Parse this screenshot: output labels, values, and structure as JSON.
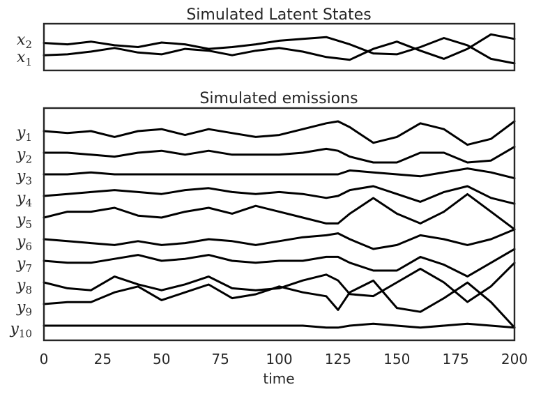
{
  "chart_data": [
    {
      "type": "line",
      "title": "Simulated Latent States",
      "xlim": [
        0,
        200
      ],
      "x_ticks_shown": false,
      "grid": false,
      "y_track_labels": [
        {
          "base": "x",
          "sub": "2"
        },
        {
          "base": "x",
          "sub": "1"
        }
      ],
      "x": [
        0,
        10,
        20,
        30,
        40,
        50,
        60,
        70,
        80,
        90,
        100,
        110,
        120,
        130,
        140,
        150,
        160,
        170,
        180,
        190,
        200
      ],
      "series": [
        {
          "values": [
            0.45,
            0.3,
            0.6,
            0.2,
            0.0,
            0.5,
            0.3,
            -0.2,
            0.0,
            0.3,
            0.7,
            0.9,
            1.1,
            0.3,
            -0.7,
            -0.8,
            0.0,
            1.0,
            0.2,
            -1.3,
            -1.8
          ]
        },
        {
          "values": [
            -0.9,
            -0.8,
            -0.5,
            -0.1,
            -0.6,
            -0.8,
            -0.2,
            -0.4,
            -0.9,
            -0.4,
            -0.1,
            -0.5,
            -1.1,
            -1.4,
            -0.2,
            0.6,
            -0.4,
            -1.3,
            -0.2,
            1.4,
            0.9
          ]
        }
      ]
    },
    {
      "type": "line",
      "title": "Simulated emissions",
      "xlabel": "time",
      "xlim": [
        0,
        200
      ],
      "x_ticks": [
        "0",
        "25",
        "50",
        "75",
        "100",
        "125",
        "150",
        "175",
        "200"
      ],
      "grid": false,
      "y_track_labels": [
        {
          "base": "y",
          "sub": "1"
        },
        {
          "base": "y",
          "sub": "2"
        },
        {
          "base": "y",
          "sub": "3"
        },
        {
          "base": "y",
          "sub": "4"
        },
        {
          "base": "y",
          "sub": "5"
        },
        {
          "base": "y",
          "sub": "6"
        },
        {
          "base": "y",
          "sub": "7"
        },
        {
          "base": "y",
          "sub": "8"
        },
        {
          "base": "y",
          "sub": "9"
        },
        {
          "base": "y",
          "sub": "10"
        }
      ],
      "x": [
        0,
        10,
        20,
        30,
        40,
        50,
        60,
        70,
        80,
        90,
        100,
        110,
        120,
        125,
        130,
        140,
        150,
        160,
        170,
        180,
        190,
        200
      ],
      "series": [
        {
          "values": [
            0.0,
            -0.1,
            0.0,
            -0.3,
            0.0,
            0.1,
            -0.2,
            0.1,
            -0.1,
            -0.3,
            -0.2,
            0.1,
            0.4,
            0.5,
            0.2,
            -0.6,
            -0.3,
            0.4,
            0.1,
            -0.7,
            -0.4,
            0.5
          ]
        },
        {
          "values": [
            0.0,
            0.0,
            -0.1,
            -0.2,
            0.0,
            0.1,
            -0.1,
            0.1,
            -0.1,
            -0.1,
            -0.1,
            0.0,
            0.2,
            0.1,
            -0.2,
            -0.5,
            -0.5,
            0.0,
            0.0,
            -0.5,
            -0.4,
            0.3
          ]
        },
        {
          "values": [
            0.0,
            0.0,
            0.1,
            0.0,
            0.0,
            0.0,
            0.0,
            0.0,
            0.0,
            0.0,
            0.0,
            0.0,
            0.0,
            0.0,
            0.2,
            0.1,
            0.0,
            -0.1,
            0.1,
            0.3,
            0.1,
            -0.2
          ]
        },
        {
          "values": [
            0.0,
            0.1,
            0.2,
            0.3,
            0.2,
            0.1,
            0.3,
            0.4,
            0.2,
            0.1,
            0.2,
            0.1,
            -0.1,
            0.0,
            0.3,
            0.5,
            0.1,
            -0.3,
            0.2,
            0.5,
            -0.1,
            -0.4
          ]
        },
        {
          "values": [
            0.0,
            0.3,
            0.3,
            0.5,
            0.1,
            0.0,
            0.3,
            0.5,
            0.2,
            0.6,
            0.3,
            0.0,
            -0.3,
            -0.3,
            0.2,
            1.0,
            0.2,
            -0.3,
            0.3,
            1.2,
            0.3,
            -0.6
          ]
        },
        {
          "values": [
            0.0,
            -0.1,
            -0.2,
            -0.3,
            -0.1,
            -0.3,
            -0.2,
            0.0,
            -0.1,
            -0.3,
            -0.1,
            0.1,
            0.2,
            0.3,
            0.0,
            -0.5,
            -0.3,
            0.2,
            0.0,
            -0.3,
            0.0,
            0.5
          ]
        },
        {
          "values": [
            0.0,
            -0.1,
            -0.1,
            0.1,
            0.3,
            0.0,
            0.1,
            0.3,
            0.0,
            -0.1,
            0.0,
            0.0,
            0.2,
            0.2,
            -0.1,
            -0.5,
            -0.5,
            0.2,
            -0.2,
            -0.8,
            -0.1,
            0.6
          ]
        },
        {
          "values": [
            0.0,
            -0.3,
            -0.4,
            0.3,
            -0.1,
            -0.4,
            -0.1,
            0.3,
            -0.3,
            -0.4,
            -0.3,
            0.1,
            0.4,
            0.1,
            -0.6,
            -0.7,
            0.0,
            0.7,
            0.0,
            -1.0,
            -0.2,
            1.0
          ]
        },
        {
          "values": [
            0.0,
            0.1,
            0.1,
            0.6,
            0.9,
            0.2,
            0.6,
            1.0,
            0.3,
            0.5,
            0.9,
            0.6,
            0.4,
            -0.3,
            0.6,
            1.2,
            -0.2,
            -0.4,
            0.3,
            1.1,
            0.1,
            -1.2
          ]
        },
        {
          "values": [
            0.0,
            0.0,
            0.0,
            0.0,
            0.0,
            0.0,
            0.0,
            0.0,
            0.0,
            0.0,
            0.0,
            0.0,
            -0.1,
            -0.1,
            0.0,
            0.1,
            0.0,
            -0.1,
            0.0,
            0.1,
            0.0,
            -0.1
          ]
        }
      ]
    }
  ]
}
